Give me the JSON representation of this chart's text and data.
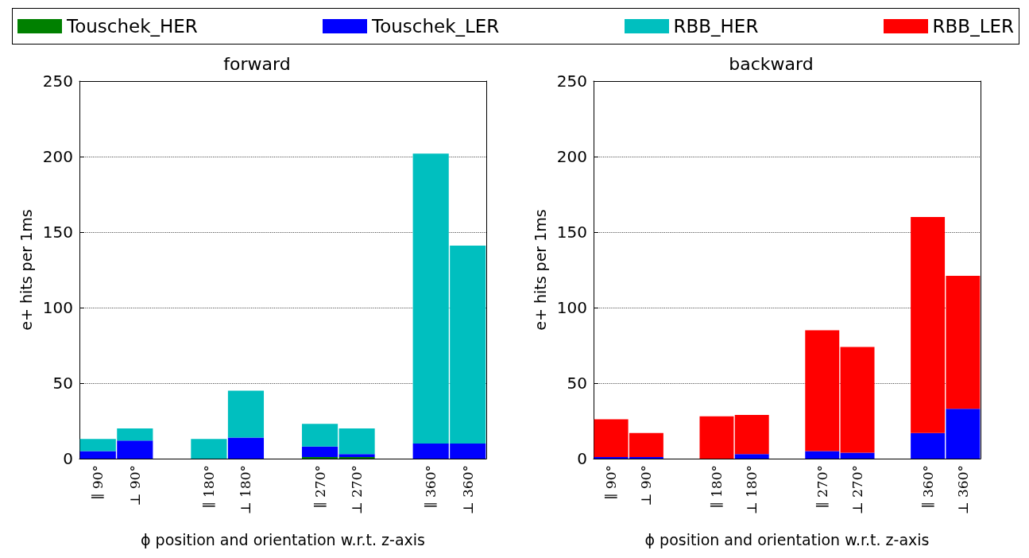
{
  "chart_data": [
    {
      "type": "bar",
      "title": "forward",
      "xlabel": "ϕ position and orientation w.r.t. z-axis",
      "ylabel": "e+ hits per 1ms",
      "stacked": true,
      "legend": "top",
      "grid": "y",
      "ylim": [
        0,
        250
      ],
      "yticks": [
        0,
        50,
        100,
        150,
        200,
        250
      ],
      "categories": [
        "∥ 90°",
        "⊥ 90°",
        null,
        "∥ 180°",
        "⊥ 180°",
        null,
        "∥ 270°",
        "⊥ 270°",
        null,
        "∥ 360°",
        "⊥ 360°"
      ],
      "series": [
        {
          "name": "Touschek_HER",
          "color": "#008000",
          "values": [
            null,
            null,
            null,
            null,
            null,
            null,
            1,
            1,
            null,
            null,
            null
          ]
        },
        {
          "name": "Touschek_LER",
          "color": "#0000ff",
          "values": [
            5,
            12,
            null,
            null,
            14,
            null,
            7,
            2,
            null,
            10,
            10
          ]
        },
        {
          "name": "RBB_HER",
          "color": "#00bfbf",
          "values": [
            8,
            8,
            null,
            13,
            31,
            null,
            15,
            17,
            null,
            192,
            131
          ]
        }
      ]
    },
    {
      "type": "bar",
      "title": "backward",
      "xlabel": "ϕ position and orientation w.r.t. z-axis",
      "ylabel": "e+ hits per 1ms",
      "stacked": true,
      "grid": "y",
      "ylim": [
        0,
        250
      ],
      "yticks": [
        0,
        50,
        100,
        150,
        200,
        250
      ],
      "categories": [
        "∥ 90°",
        "⊥ 90°",
        null,
        "∥ 180°",
        "⊥ 180°",
        null,
        "∥ 270°",
        "⊥ 270°",
        null,
        "∥ 360°",
        "⊥ 360°"
      ],
      "series": [
        {
          "color": "#0000ff",
          "values": [
            1,
            1,
            null,
            null,
            3,
            null,
            5,
            4,
            null,
            17,
            33
          ]
        },
        {
          "name": "RBB_LER",
          "color": "#ff0000",
          "values": [
            25,
            16,
            null,
            28,
            26,
            null,
            80,
            70,
            null,
            143,
            88
          ]
        }
      ]
    }
  ]
}
